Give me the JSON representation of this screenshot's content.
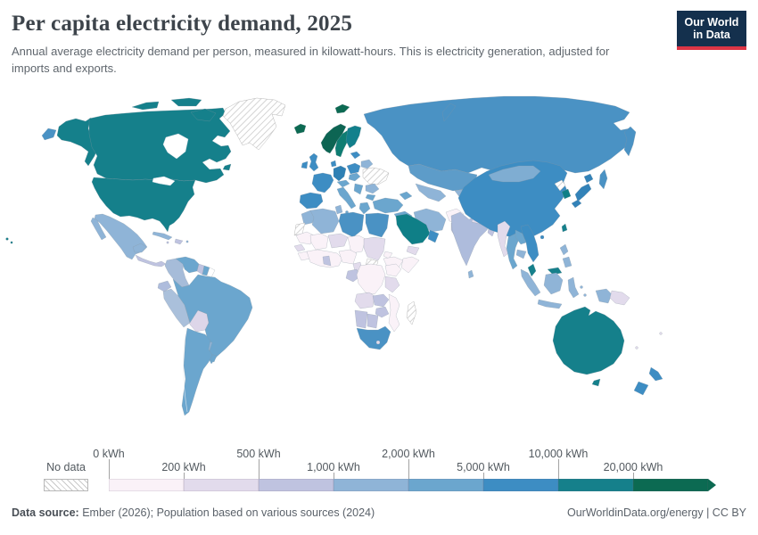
{
  "header": {
    "title": "Per capita electricity demand, 2025",
    "subtitle": "Annual average electricity demand per person, measured in kilowatt-hours. This is electricity generation, adjusted for imports and exports.",
    "logo": {
      "line1": "Our World",
      "line2": "in Data"
    }
  },
  "legend": {
    "no_data_label": "No data",
    "unit": "kWh",
    "stops": [
      {
        "label": "0 kWh",
        "row": "top"
      },
      {
        "label": "200 kWh",
        "row": "bottom"
      },
      {
        "label": "500 kWh",
        "row": "top"
      },
      {
        "label": "1,000 kWh",
        "row": "bottom"
      },
      {
        "label": "2,000 kWh",
        "row": "top"
      },
      {
        "label": "5,000 kWh",
        "row": "bottom"
      },
      {
        "label": "10,000 kWh",
        "row": "top"
      },
      {
        "label": "20,000 kWh",
        "row": "bottom"
      }
    ],
    "colors": [
      "#faf2f8",
      "#e2dbec",
      "#bfc3e0",
      "#8fb4d7",
      "#6ba6ce",
      "#3d8dc3",
      "#15808b",
      "#0c6a52"
    ]
  },
  "footer": {
    "source_label": "Data source:",
    "source_text": " Ember (2026); Population based on various sources (2024)",
    "right_text": "OurWorldinData.org/energy | CC BY"
  },
  "map": {
    "region_colors": {
      "greenland": "hatch",
      "canada": "#15808b",
      "alaska": "#15808b",
      "usa": "#15808b",
      "hawaii": "#15808b",
      "chukotka": "#4a92c4",
      "mexico": "#8fb4d7",
      "central-america": "#bfc3e0",
      "panama": "#6ba6ce",
      "cuba": "#8fb4d7",
      "hispaniola": "#bfc3e0",
      "jamaica": "#bfc3e0",
      "puerto-rico": "#8fb4d7",
      "colombia": "#a6bcd9",
      "venezuela": "#6ba6ce",
      "guyana": "#bfc3e0",
      "suriname": "#6ba6ce",
      "french-guiana": "#ffffff",
      "ecuador": "#aebcdc",
      "peru": "#aac0db",
      "bolivia": "#ddd6e9",
      "brazil": "#6ba6ce",
      "paraguay": "#8fb4d7",
      "uruguay": "#6ba6ce",
      "argentina": "#6ba6ce",
      "iceland": "#0c6a52",
      "svalbard": "#0c6a52",
      "norway": "#0d6553",
      "sweden": "#0e7d72",
      "finland": "#12808c",
      "baltics": "#3d8dc3",
      "denmark": "#3d8dc3",
      "uk": "#3d8dc3",
      "ireland": "#3d8dc3",
      "france": "#3d8dc3",
      "iberia": "#3d8dc3",
      "germany": "#2e80b4",
      "central-europe": "#6ba6ce",
      "italy": "#6ba6ce",
      "poland": "#3d8dc3",
      "belarus": "#8fb4d7",
      "ukraine": "hatch",
      "romania": "#8fb4d7",
      "balkans": "#6ba6ce",
      "bulgaria": "#6ba6ce",
      "greece": "#6ba6ce",
      "russia": "#4a92c4",
      "kazakhstan": "#5d9cc9",
      "central-asia": "#8fb4d7",
      "kyrgyzstan": "#8fb4d7",
      "caucasus": "#6ba6ce",
      "turkey": "#6ba6ce",
      "syria-iraq": "#6ba6ce",
      "iran": "#8fb4d7",
      "afghanistan": "#faf2f8",
      "pakistan": "#bfc3e0",
      "saudi-arabia": "#0f7f87",
      "oman": "#3d8dc3",
      "yemen": "#e2dbec",
      "india": "#aebcdc",
      "sri-lanka": "#8fb4d7",
      "nepal": "#e2dbec",
      "bhutan": "#15808b",
      "bangladesh": "#bfc3e0",
      "myanmar": "#e2dbec",
      "thailand": "#6ba6ce",
      "laos": "#6ba6ce",
      "cambodia": "#8fb4d7",
      "vietnam": "#3d8dc3",
      "china": "#3d8dc3",
      "mongolia": "#7fadd2",
      "north-korea": "hatch",
      "south-korea": "#0f7f87",
      "japan": "#3282b8",
      "taiwan": "#15808b",
      "hainan": "#3d8dc3",
      "philippines": "#8fb4d7",
      "malaysia": "#15808b",
      "indonesia": "#8fb4d7",
      "papua-new-guinea": "#e2dbec",
      "fiji": "#e2dbec",
      "new-caledonia": "#e2dbec",
      "morocco": "#8fb4d7",
      "algeria": "#8fb4d7",
      "tunisia": "#8fb4d7",
      "libya": "#4a92c4",
      "egypt": "#4a92c4",
      "western-sahara": "hatch",
      "mauritania": "#faf2f8",
      "mali": "#faf2f8",
      "niger": "#e2dbec",
      "chad": "#faf2f8",
      "sudan": "#e2dbec",
      "south-sudan": "hatch",
      "eritrea": "#faf2f8",
      "ethiopia": "#faf2f8",
      "somalia": "#faf2f8",
      "senegal": "#e2dbec",
      "guinea": "#faf2f8",
      "west-africa-coast": "#faf2f8",
      "ghana": "#bfc3e0",
      "nigeria": "#faf2f8",
      "cameroon": "#e2dbec",
      "gabon-congo": "#bfc3e0",
      "drc": "#faf2f8",
      "kenya": "#faf2f8",
      "tanzania": "#e2dbec",
      "angola": "#e2dbec",
      "zambia": "#bfc3e0",
      "zimbabwe": "#bfc3e0",
      "mozambique": "#faf2f8",
      "namibia": "#bfc3e0",
      "botswana": "#bfc3e0",
      "south-africa": "#4a92c4",
      "lesotho": "#e2dbec",
      "madagascar": "hatch",
      "australia": "#15808b",
      "tasmania": "#15808b",
      "new-zealand": "#3d8dc3"
    }
  },
  "chart_data": {
    "type": "choropleth",
    "title": "Per capita electricity demand, 2025",
    "unit": "kWh per person",
    "legend_position": "bottom",
    "no_data": {
      "label": "No data",
      "pattern": "hatched"
    },
    "bins": [
      {
        "range": "0-200",
        "color": "#faf2f8"
      },
      {
        "range": "200-500",
        "color": "#e2dbec"
      },
      {
        "range": "500-1,000",
        "color": "#bfc3e0"
      },
      {
        "range": "1,000-2,000",
        "color": "#8fb4d7"
      },
      {
        "range": "2,000-5,000",
        "color": "#6ba6ce"
      },
      {
        "range": "5,000-10,000",
        "color": "#3d8dc3"
      },
      {
        "range": "10,000-20,000",
        "color": "#15808b"
      },
      {
        "range": "20,000+",
        "color": "#0c6a52"
      }
    ],
    "regions": [
      {
        "name": "United States",
        "bin": "10,000-20,000"
      },
      {
        "name": "Canada",
        "bin": "10,000-20,000"
      },
      {
        "name": "Greenland",
        "bin": "No data"
      },
      {
        "name": "Mexico",
        "bin": "1,000-2,000"
      },
      {
        "name": "Central America",
        "bin": "500-1,000"
      },
      {
        "name": "Cuba",
        "bin": "1,000-2,000"
      },
      {
        "name": "Colombia",
        "bin": "1,000-2,000"
      },
      {
        "name": "Venezuela",
        "bin": "2,000-5,000"
      },
      {
        "name": "Ecuador",
        "bin": "1,000-2,000"
      },
      {
        "name": "Peru",
        "bin": "1,000-2,000"
      },
      {
        "name": "Bolivia",
        "bin": "200-500"
      },
      {
        "name": "Brazil",
        "bin": "2,000-5,000"
      },
      {
        "name": "Paraguay",
        "bin": "1,000-2,000"
      },
      {
        "name": "Uruguay",
        "bin": "2,000-5,000"
      },
      {
        "name": "Argentina",
        "bin": "2,000-5,000"
      },
      {
        "name": "Chile",
        "bin": "2,000-5,000"
      },
      {
        "name": "Iceland",
        "bin": "20,000+"
      },
      {
        "name": "Norway",
        "bin": "20,000+"
      },
      {
        "name": "Sweden",
        "bin": "10,000-20,000"
      },
      {
        "name": "Finland",
        "bin": "10,000-20,000"
      },
      {
        "name": "United Kingdom",
        "bin": "5,000-10,000"
      },
      {
        "name": "Ireland",
        "bin": "5,000-10,000"
      },
      {
        "name": "France",
        "bin": "5,000-10,000"
      },
      {
        "name": "Spain",
        "bin": "5,000-10,000"
      },
      {
        "name": "Germany",
        "bin": "5,000-10,000"
      },
      {
        "name": "Italy",
        "bin": "2,000-5,000"
      },
      {
        "name": "Poland",
        "bin": "5,000-10,000"
      },
      {
        "name": "Ukraine",
        "bin": "No data"
      },
      {
        "name": "Belarus",
        "bin": "1,000-2,000"
      },
      {
        "name": "Russia",
        "bin": "5,000-10,000"
      },
      {
        "name": "Kazakhstan",
        "bin": "5,000-10,000"
      },
      {
        "name": "Turkey",
        "bin": "2,000-5,000"
      },
      {
        "name": "Saudi Arabia",
        "bin": "10,000-20,000"
      },
      {
        "name": "Iran",
        "bin": "1,000-2,000"
      },
      {
        "name": "Iraq",
        "bin": "2,000-5,000"
      },
      {
        "name": "Afghanistan",
        "bin": "0-200"
      },
      {
        "name": "Pakistan",
        "bin": "500-1,000"
      },
      {
        "name": "India",
        "bin": "1,000-2,000"
      },
      {
        "name": "China",
        "bin": "5,000-10,000"
      },
      {
        "name": "Mongolia",
        "bin": "2,000-5,000"
      },
      {
        "name": "Japan",
        "bin": "5,000-10,000"
      },
      {
        "name": "South Korea",
        "bin": "10,000-20,000"
      },
      {
        "name": "North Korea",
        "bin": "No data"
      },
      {
        "name": "Taiwan",
        "bin": "10,000-20,000"
      },
      {
        "name": "Vietnam",
        "bin": "2,000-5,000"
      },
      {
        "name": "Thailand",
        "bin": "2,000-5,000"
      },
      {
        "name": "Myanmar",
        "bin": "200-500"
      },
      {
        "name": "Malaysia",
        "bin": "10,000-20,000"
      },
      {
        "name": "Indonesia",
        "bin": "1,000-2,000"
      },
      {
        "name": "Philippines",
        "bin": "1,000-2,000"
      },
      {
        "name": "Papua New Guinea",
        "bin": "200-500"
      },
      {
        "name": "Australia",
        "bin": "10,000-20,000"
      },
      {
        "name": "New Zealand",
        "bin": "5,000-10,000"
      },
      {
        "name": "Egypt",
        "bin": "2,000-5,000"
      },
      {
        "name": "Libya",
        "bin": "5,000-10,000"
      },
      {
        "name": "Algeria",
        "bin": "1,000-2,000"
      },
      {
        "name": "Morocco",
        "bin": "1,000-2,000"
      },
      {
        "name": "Tunisia",
        "bin": "1,000-2,000"
      },
      {
        "name": "Western Sahara",
        "bin": "No data"
      },
      {
        "name": "Mauritania",
        "bin": "0-200"
      },
      {
        "name": "Mali",
        "bin": "0-200"
      },
      {
        "name": "Niger",
        "bin": "200-500"
      },
      {
        "name": "Chad",
        "bin": "0-200"
      },
      {
        "name": "Sudan",
        "bin": "200-500"
      },
      {
        "name": "South Sudan",
        "bin": "No data"
      },
      {
        "name": "Ethiopia",
        "bin": "0-200"
      },
      {
        "name": "Somalia",
        "bin": "0-200"
      },
      {
        "name": "Kenya",
        "bin": "0-200"
      },
      {
        "name": "Tanzania",
        "bin": "200-500"
      },
      {
        "name": "Nigeria",
        "bin": "0-200"
      },
      {
        "name": "Ghana",
        "bin": "500-1,000"
      },
      {
        "name": "DR Congo",
        "bin": "0-200"
      },
      {
        "name": "Gabon",
        "bin": "500-1,000"
      },
      {
        "name": "Angola",
        "bin": "200-500"
      },
      {
        "name": "Zambia",
        "bin": "500-1,000"
      },
      {
        "name": "Zimbabwe",
        "bin": "500-1,000"
      },
      {
        "name": "Mozambique",
        "bin": "0-200"
      },
      {
        "name": "Namibia",
        "bin": "500-1,000"
      },
      {
        "name": "Botswana",
        "bin": "500-1,000"
      },
      {
        "name": "South Africa",
        "bin": "2,000-5,000"
      },
      {
        "name": "Madagascar",
        "bin": "No data"
      },
      {
        "name": "Oman",
        "bin": "5,000-10,000"
      },
      {
        "name": "Yemen",
        "bin": "200-500"
      },
      {
        "name": "Bhutan",
        "bin": "10,000-20,000"
      },
      {
        "name": "Nepal",
        "bin": "200-500"
      },
      {
        "name": "Bangladesh",
        "bin": "500-1,000"
      },
      {
        "name": "Sri Lanka",
        "bin": "1,000-2,000"
      }
    ]
  }
}
